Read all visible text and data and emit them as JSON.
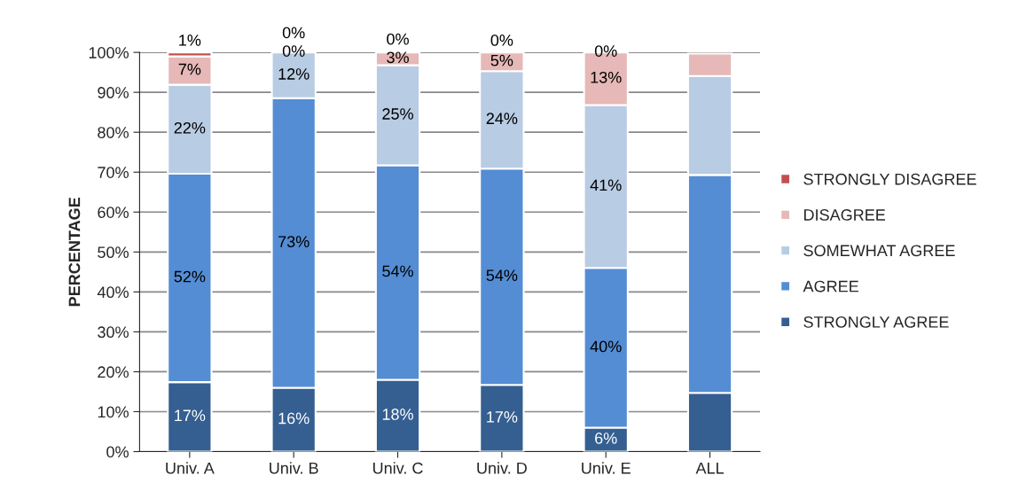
{
  "chart_data": {
    "type": "bar",
    "stacked": true,
    "ylabel": "PERCENTAGE",
    "categories": [
      "Univ. A",
      "Univ. B",
      "Univ. C",
      "Univ. D",
      "Univ. E",
      "ALL"
    ],
    "series": [
      {
        "name": "STRONGLY AGREE",
        "color": "#355f91",
        "values": [
          17.4,
          16,
          18,
          16.7,
          6,
          14.7
        ],
        "value_labels": [
          "17%",
          "16%",
          "18%",
          "17%",
          "6%",
          null
        ]
      },
      {
        "name": "AGREE",
        "color": "#548dd4",
        "values": [
          52.2,
          72.5,
          53.7,
          54.2,
          40,
          54.6
        ],
        "value_labels": [
          "52%",
          "73%",
          "54%",
          "54%",
          "40%",
          null
        ]
      },
      {
        "name": "SOMEWHAT AGREE",
        "color": "#b8cce4",
        "values": [
          22.3,
          11.5,
          25.1,
          24.4,
          40.8,
          24.8
        ],
        "value_labels": [
          "22%",
          "12%",
          "25%",
          "24%",
          "41%",
          null
        ]
      },
      {
        "name": "DISAGREE",
        "color": "#e6b8b7",
        "values": [
          7.1,
          0,
          3.2,
          4.7,
          13.2,
          5.6
        ],
        "value_labels": [
          "7%",
          "0%",
          "3%",
          "5%",
          "13%",
          null
        ]
      },
      {
        "name": "STRONGLY DISAGREE",
        "color": "#c0504d",
        "values": [
          1,
          0,
          0,
          0,
          0,
          null
        ],
        "value_labels": [
          "1%",
          "0%",
          "0%",
          "0%",
          "0%",
          null
        ]
      }
    ],
    "ylim": [
      0,
      100
    ],
    "yticks": [
      {
        "value": 0,
        "label": "0%"
      },
      {
        "value": 10,
        "label": "10%"
      },
      {
        "value": 20,
        "label": "20%"
      },
      {
        "value": 30,
        "label": "30%"
      },
      {
        "value": 40,
        "label": "40%"
      },
      {
        "value": 50,
        "label": "50%"
      },
      {
        "value": 60,
        "label": "60%"
      },
      {
        "value": 70,
        "label": "70%"
      },
      {
        "value": 80,
        "label": "80%"
      },
      {
        "value": 90,
        "label": "90%"
      },
      {
        "value": 100,
        "label": "100%"
      }
    ],
    "grid": "y",
    "legend": "right"
  }
}
